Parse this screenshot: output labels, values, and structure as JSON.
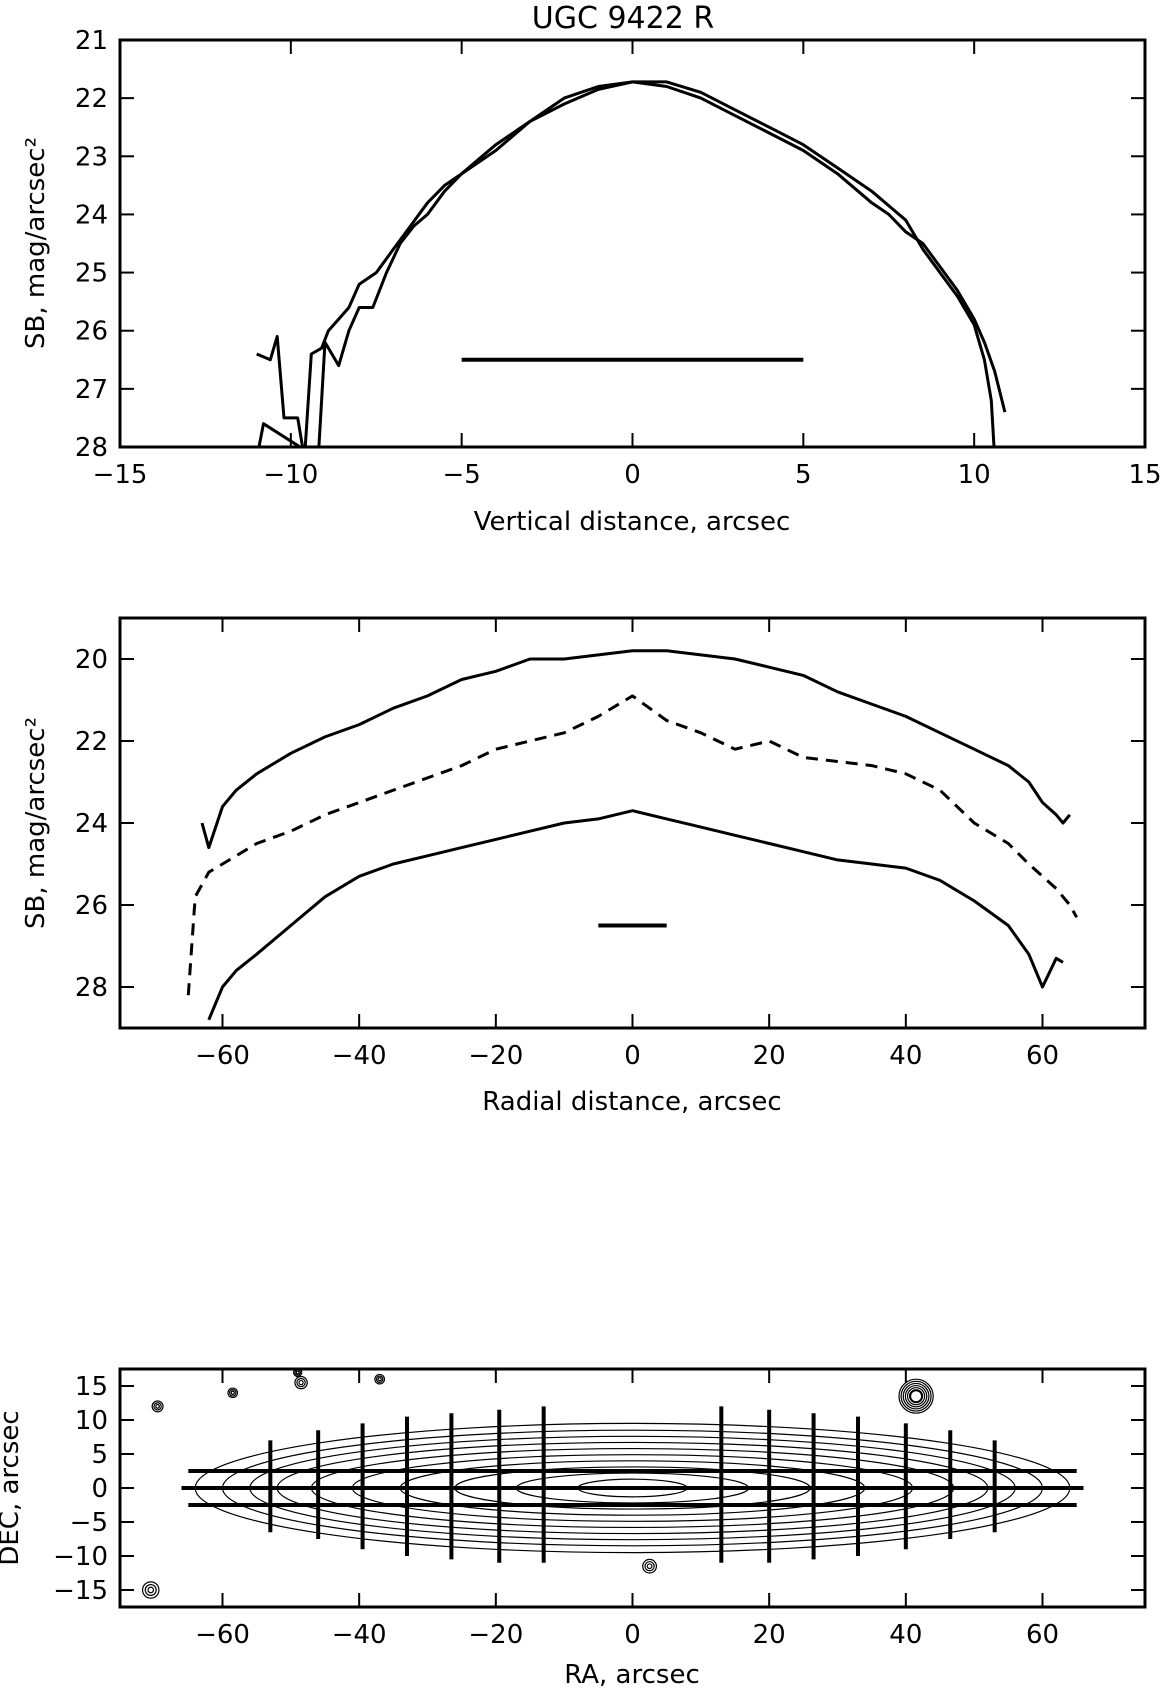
{
  "figure_title": "UGC 9422 R",
  "chart_data": [
    {
      "type": "line",
      "title": "UGC 9422 R",
      "xlabel": "Vertical distance, arcsec",
      "ylabel": "SB, mag/arcsec²",
      "xlim": [
        -15,
        15
      ],
      "ylim": [
        28,
        21
      ],
      "inverted_y": true,
      "x_ticks": [
        -15,
        -10,
        -5,
        0,
        5,
        10,
        15
      ],
      "x_tick_labels": [
        "−15",
        "−10",
        "−5",
        "0",
        "5",
        "10",
        "15"
      ],
      "y_ticks": [
        21,
        22,
        23,
        24,
        25,
        26,
        27,
        28
      ],
      "y_tick_labels": [
        "21",
        "22",
        "23",
        "24",
        "25",
        "26",
        "27",
        "28"
      ],
      "series": [
        {
          "style": "solid",
          "x": [
            -11.0,
            -10.6,
            -10.4,
            -10.2,
            -9.8,
            -9.6,
            -9.4,
            -9.1,
            -8.9,
            -8.6,
            -8.3,
            -8.0,
            -7.5,
            -7.0,
            -6.5,
            -6.0,
            -5.5,
            -5.0,
            -4.0,
            -3.0,
            -2.0,
            -1.0,
            0.0,
            1.0,
            2.0,
            3.0,
            4.0,
            5.0,
            6.0,
            7.0,
            7.5,
            8.0,
            8.5,
            9.0,
            9.5,
            10.0,
            10.3,
            10.6,
            10.9
          ],
          "y": [
            26.4,
            26.5,
            26.1,
            27.5,
            27.5,
            28.2,
            26.4,
            26.3,
            26.0,
            25.8,
            25.6,
            25.2,
            25.0,
            24.6,
            24.2,
            23.8,
            23.5,
            23.3,
            22.8,
            22.4,
            22.1,
            21.85,
            21.72,
            21.8,
            22.0,
            22.3,
            22.6,
            22.9,
            23.3,
            23.8,
            24.0,
            24.3,
            24.5,
            24.9,
            25.3,
            25.8,
            26.2,
            26.7,
            27.4
          ]
        },
        {
          "style": "solid",
          "x": [
            -11.0,
            -10.8,
            -9.2,
            -9.0,
            -8.6,
            -8.3,
            -8.0,
            -7.6,
            -7.2,
            -6.8,
            -6.4,
            -6.0,
            -5.5,
            -5.0,
            -4.0,
            -3.0,
            -2.0,
            -1.0,
            0.0,
            1.0,
            2.0,
            3.0,
            4.0,
            5.0,
            6.0,
            7.0,
            8.0,
            8.5,
            9.0,
            9.5,
            10.0,
            10.3,
            10.5,
            10.6
          ],
          "y": [
            28.2,
            27.6,
            28.2,
            26.2,
            26.6,
            26.0,
            25.6,
            25.6,
            25.0,
            24.5,
            24.2,
            24.0,
            23.6,
            23.3,
            22.9,
            22.4,
            22.0,
            21.8,
            21.72,
            21.72,
            21.9,
            22.2,
            22.5,
            22.8,
            23.2,
            23.6,
            24.1,
            24.6,
            25.0,
            25.4,
            25.9,
            26.5,
            27.2,
            28.2
          ]
        }
      ],
      "annotations": [
        {
          "type": "horizontal_bar",
          "x": [
            -5,
            5
          ],
          "y": 26.5
        }
      ]
    },
    {
      "type": "line",
      "xlabel": "Radial distance, arcsec",
      "ylabel": "SB, mag/arcsec²",
      "xlim": [
        -75,
        75
      ],
      "ylim": [
        29,
        19
      ],
      "inverted_y": true,
      "x_ticks": [
        -60,
        -40,
        -20,
        0,
        20,
        40,
        60
      ],
      "x_tick_labels": [
        "−60",
        "−40",
        "−20",
        "0",
        "20",
        "40",
        "60"
      ],
      "y_ticks": [
        20,
        22,
        24,
        26,
        28
      ],
      "y_tick_labels": [
        "20",
        "22",
        "24",
        "26",
        "28"
      ],
      "series": [
        {
          "style": "solid",
          "x": [
            -63,
            -62,
            -60,
            -58,
            -55,
            -50,
            -45,
            -40,
            -35,
            -30,
            -25,
            -20,
            -15,
            -10,
            -5,
            0,
            5,
            10,
            15,
            20,
            25,
            30,
            35,
            40,
            45,
            50,
            55,
            58,
            60,
            62,
            63,
            64
          ],
          "y": [
            24.0,
            24.6,
            23.6,
            23.2,
            22.8,
            22.3,
            21.9,
            21.6,
            21.2,
            20.9,
            20.5,
            20.3,
            20.0,
            20.0,
            19.9,
            19.8,
            19.8,
            19.9,
            20.0,
            20.2,
            20.4,
            20.8,
            21.1,
            21.4,
            21.8,
            22.2,
            22.6,
            23.0,
            23.5,
            23.8,
            24.0,
            23.8
          ]
        },
        {
          "style": "dashed",
          "x": [
            -65,
            -64,
            -62,
            -60,
            -58,
            -55,
            -50,
            -45,
            -40,
            -35,
            -30,
            -25,
            -20,
            -15,
            -10,
            -5,
            0,
            5,
            10,
            15,
            20,
            25,
            30,
            35,
            40,
            45,
            50,
            55,
            58,
            60,
            62,
            64,
            65
          ],
          "y": [
            28.2,
            25.8,
            25.2,
            25.0,
            24.8,
            24.5,
            24.2,
            23.8,
            23.5,
            23.2,
            22.9,
            22.6,
            22.2,
            22.0,
            21.8,
            21.4,
            20.9,
            21.5,
            21.8,
            22.2,
            22.0,
            22.4,
            22.5,
            22.6,
            22.8,
            23.2,
            24.0,
            24.5,
            25.0,
            25.3,
            25.6,
            26.0,
            26.3
          ]
        },
        {
          "style": "solid",
          "x": [
            -62,
            -60,
            -58,
            -55,
            -50,
            -45,
            -40,
            -35,
            -30,
            -25,
            -20,
            -15,
            -10,
            -5,
            0,
            5,
            10,
            15,
            20,
            25,
            30,
            35,
            40,
            45,
            50,
            55,
            58,
            60,
            62,
            63
          ],
          "y": [
            28.8,
            28.0,
            27.6,
            27.2,
            26.5,
            25.8,
            25.3,
            25.0,
            24.8,
            24.6,
            24.4,
            24.2,
            24.0,
            23.9,
            23.7,
            23.9,
            24.1,
            24.3,
            24.5,
            24.7,
            24.9,
            25.0,
            25.1,
            25.4,
            25.9,
            26.5,
            27.2,
            28.0,
            27.3,
            27.4
          ]
        }
      ],
      "annotations": [
        {
          "type": "horizontal_bar",
          "x": [
            -5,
            5
          ],
          "y": 26.5
        }
      ]
    },
    {
      "type": "contour",
      "xlabel": "RA, arcsec",
      "ylabel": "DEC, arcsec",
      "xlim": [
        -75,
        75
      ],
      "ylim": [
        -17.5,
        17.5
      ],
      "x_ticks": [
        -60,
        -40,
        -20,
        0,
        20,
        40,
        60
      ],
      "x_tick_labels": [
        "−60",
        "−40",
        "−20",
        "0",
        "20",
        "40",
        "60"
      ],
      "y_ticks": [
        -15,
        -10,
        -5,
        0,
        5,
        10,
        15
      ],
      "y_tick_labels": [
        "−15",
        "−10",
        "−5",
        "0",
        "5",
        "10",
        "15"
      ],
      "horizontal_lines": [
        {
          "y": 2.5,
          "x": [
            -65,
            65
          ]
        },
        {
          "y": 0,
          "x": [
            -66,
            66
          ]
        },
        {
          "y": -2.5,
          "x": [
            -65,
            65
          ]
        }
      ],
      "vertical_lines": [
        {
          "x": -53,
          "y": [
            -6.5,
            7.0
          ]
        },
        {
          "x": -46,
          "y": [
            -7.5,
            8.5
          ]
        },
        {
          "x": -39.5,
          "y": [
            -9.0,
            9.5
          ]
        },
        {
          "x": -33,
          "y": [
            -10.0,
            10.5
          ]
        },
        {
          "x": -26.5,
          "y": [
            -10.5,
            11.0
          ]
        },
        {
          "x": -19.5,
          "y": [
            -11.0,
            11.5
          ]
        },
        {
          "x": -13,
          "y": [
            -11.0,
            12.0
          ]
        },
        {
          "x": 13,
          "y": [
            -11.0,
            12.0
          ]
        },
        {
          "x": 20,
          "y": [
            -11.0,
            11.5
          ]
        },
        {
          "x": 26.5,
          "y": [
            -10.5,
            11.0
          ]
        },
        {
          "x": 33,
          "y": [
            -10.0,
            10.5
          ]
        },
        {
          "x": 40,
          "y": [
            -9.0,
            9.5
          ]
        },
        {
          "x": 46.5,
          "y": [
            -7.5,
            8.5
          ]
        },
        {
          "x": 53,
          "y": [
            -6.5,
            7.0
          ]
        }
      ],
      "galaxy_contours": {
        "half_lengths": [
          64,
          60,
          56,
          52,
          47,
          41,
          34,
          26,
          17,
          8
        ],
        "half_heights": [
          9.5,
          8.5,
          7.6,
          6.7,
          5.8,
          4.9,
          4.0,
          3.1,
          2.2,
          1.3
        ]
      },
      "stars": [
        {
          "x": 41.5,
          "y": 13.5,
          "r": 2.5
        },
        {
          "x": -70.5,
          "y": -15.0,
          "r": 1.2
        },
        {
          "x": 2.5,
          "y": -11.5,
          "r": 1.0
        },
        {
          "x": -69.5,
          "y": 12.0,
          "r": 0.8
        },
        {
          "x": -48.5,
          "y": 15.5,
          "r": 0.9
        },
        {
          "x": -58.5,
          "y": 14.0,
          "r": 0.7
        },
        {
          "x": -37.0,
          "y": 16.0,
          "r": 0.7
        },
        {
          "x": -49.0,
          "y": 17.0,
          "r": 0.6
        }
      ]
    }
  ]
}
